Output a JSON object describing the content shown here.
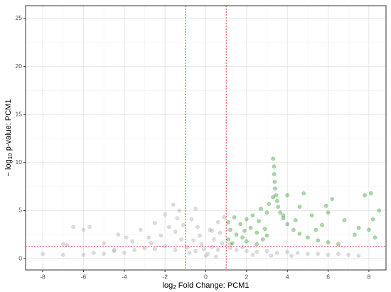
{
  "chart_data": {
    "type": "scatter",
    "xlabel": {
      "pre": "log",
      "sub": "2",
      "post": " Fold Change: PCM1"
    },
    "ylabel": {
      "pre": "− log",
      "sub": "10",
      "post": " p-value: PCM1"
    },
    "xlim": [
      -8.84,
      8.84
    ],
    "ylim": [
      -1.18,
      26.33
    ],
    "xticks": [
      -8,
      -6,
      -4,
      -2,
      0,
      2,
      4,
      6,
      8
    ],
    "yticks": [
      0,
      5,
      10,
      15,
      20,
      25
    ],
    "minor_xticks": [
      -7,
      -5,
      -3,
      -1,
      1,
      3,
      5,
      7
    ],
    "minor_yticks": [
      2.5,
      7.5,
      12.5,
      17.5,
      22.5
    ],
    "grid": true,
    "vlines": [
      -1,
      1
    ],
    "hline": 1.3,
    "threshold_color": "#e8433a",
    "series": [
      {
        "color": "#aaaaaa",
        "x": [
          -0.5,
          0.3,
          0.1,
          -0.2,
          0.6,
          -0.8,
          0.4,
          -0.3,
          0.2,
          0.7,
          -0.6,
          0,
          0.5,
          -0.1,
          0.8,
          -0.9,
          1.5,
          2.0,
          2.5,
          3.0,
          3.5,
          4.0,
          4.5,
          5.0,
          5.5,
          6.0,
          6.5,
          7.0,
          7.5,
          1.2,
          1.8,
          2.3,
          3.2,
          4.2,
          -1.5,
          -2.0,
          -2.5,
          -3.0,
          -3.5,
          -4.0,
          -4.5,
          -5.0,
          -5.5,
          -6.0,
          -7.0,
          -8.0,
          -1.2,
          -1.5,
          -1.8,
          -2.2,
          -2.5,
          -1.1,
          -1.4,
          -2.0,
          -0.7,
          -1.3,
          -1.6,
          -0.5,
          -2.8,
          -3.2,
          -3.6,
          -4.3,
          -5.7,
          -6.0,
          -6.5,
          -6.8,
          -4.5,
          -0.4,
          0.6,
          0.9,
          0.3,
          1.2,
          -2.7,
          -3.9,
          -5.0,
          -7.0
        ],
        "y": [
          0.8,
          1.2,
          0.5,
          1.5,
          0.9,
          0.6,
          2.0,
          2.4,
          3.0,
          2.7,
          1.9,
          0.3,
          0.2,
          1.0,
          1.6,
          1.2,
          0.9,
          0.8,
          0.7,
          0.8,
          0.6,
          0.7,
          0.6,
          0.5,
          0.5,
          0.4,
          0.5,
          0.4,
          0.3,
          1.1,
          1.2,
          0.4,
          0.3,
          0.3,
          0.9,
          1.3,
          1.0,
          1.1,
          0.9,
          0.6,
          0.8,
          0.5,
          0.6,
          0.4,
          0.4,
          0.5,
          2.0,
          2.8,
          3.3,
          2.4,
          3.7,
          3.5,
          4.2,
          4.6,
          4.1,
          5.0,
          5.6,
          5.2,
          2.2,
          3.0,
          1.8,
          2.5,
          3.3,
          3.0,
          3.3,
          1.4,
          0.9,
          3.3,
          3.8,
          4.3,
          2.9,
          1.5,
          1.6,
          2.2,
          1.6,
          1.5
        ]
      },
      {
        "color": "#2e9a2e",
        "x": [
          3.3,
          3.35,
          3.35,
          3.38,
          3.4,
          3.45,
          3.5,
          3.55,
          3.65,
          3.8,
          4.0,
          4.3,
          4.6,
          5.0,
          5.5,
          6.0,
          6.5,
          1.1,
          1.3,
          1.5,
          1.2,
          1.8,
          2.0,
          2.2,
          2.5,
          2.8,
          1.4,
          1.7,
          2.3,
          2.6,
          2.9,
          3.0,
          1.1,
          2.0,
          2.7,
          3.0,
          2.5,
          3.3,
          3.1,
          1.9,
          4.0,
          4.6,
          4.8,
          5.2,
          5.7,
          6.0,
          6.2,
          5.9,
          6.8,
          7.3,
          7.8,
          8.1,
          8.2,
          7.5,
          8.0,
          8.3,
          8.5,
          4.4,
          5.4,
          3.8
        ],
        "y": [
          10.4,
          9.6,
          8.8,
          8.0,
          7.3,
          6.6,
          6.0,
          5.4,
          4.8,
          4.2,
          3.6,
          3.0,
          2.6,
          2.2,
          1.9,
          1.7,
          1.5,
          2.0,
          1.6,
          2.5,
          3.0,
          2.2,
          1.8,
          3.2,
          2.7,
          2.0,
          4.3,
          3.6,
          4.5,
          3.9,
          3.1,
          2.4,
          3.8,
          4.1,
          5.2,
          4.8,
          1.5,
          6.4,
          5.7,
          2.9,
          6.6,
          5.4,
          6.8,
          4.5,
          3.5,
          4.8,
          6.2,
          5.5,
          4.0,
          2.5,
          6.6,
          6.8,
          4.1,
          3.2,
          3.0,
          2.2,
          5.0,
          4.0,
          3.0,
          4.5
        ]
      }
    ]
  }
}
